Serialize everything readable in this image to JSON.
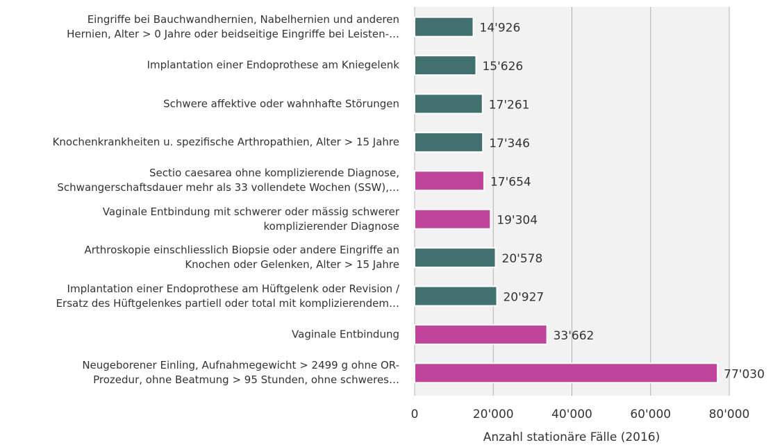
{
  "chart_data": {
    "type": "bar",
    "orientation": "horizontal",
    "x_label": "Anzahl stationäre Fälle (2016)",
    "categories": [
      "Eingriffe bei Bauchwandhernien, Nabelhernien und anderen\nHernien, Alter > 0 Jahre oder beidseitige Eingriffe bei Leisten-…",
      "Implantation einer Endoprothese am Kniegelenk",
      "Schwere affektive oder wahnhafte Störungen",
      "Knochenkrankheiten u. spezifische Arthropathien, Alter > 15 Jahre",
      "Sectio caesarea ohne komplizierende Diagnose,\nSchwangerschaftsdauer mehr als 33 vollendete Wochen (SSW),…",
      "Vaginale Entbindung mit schwerer oder mässig schwerer\nkomplizierender Diagnose",
      "Arthroskopie einschliesslich Biopsie oder andere Eingriffe an\nKnochen oder Gelenken, Alter > 15 Jahre",
      "Implantation einer Endoprothese am Hüftgelenk oder Revision /\nErsatz des Hüftgelenkes partiell oder total mit komplizierendem…",
      "Vaginale Entbindung",
      "Neugeborener Einling, Aufnahmegewicht > 2499 g ohne OR-\nProzedur, ohne Beatmung > 95 Stunden, ohne schweres…"
    ],
    "values": [
      14926,
      15626,
      17261,
      17346,
      17654,
      19304,
      20578,
      20927,
      33662,
      77030
    ],
    "value_labels": [
      "14'926",
      "15'626",
      "17'261",
      "17'346",
      "17'654",
      "19'304",
      "20'578",
      "20'927",
      "33'662",
      "77'030"
    ],
    "colors": [
      "#41706f",
      "#41706f",
      "#41706f",
      "#41706f",
      "#c0449a",
      "#c0449a",
      "#41706f",
      "#41706f",
      "#c0449a",
      "#c0449a"
    ],
    "xlim": [
      0,
      80000
    ],
    "xticks": [
      0,
      {
        "value": 20000,
        "label": "20'000"
      },
      {
        "value": 40000,
        "label": "40'000"
      },
      {
        "value": 60000,
        "label": "60'000"
      },
      {
        "value": 80000,
        "label": "80'000"
      }
    ],
    "grid": true
  }
}
